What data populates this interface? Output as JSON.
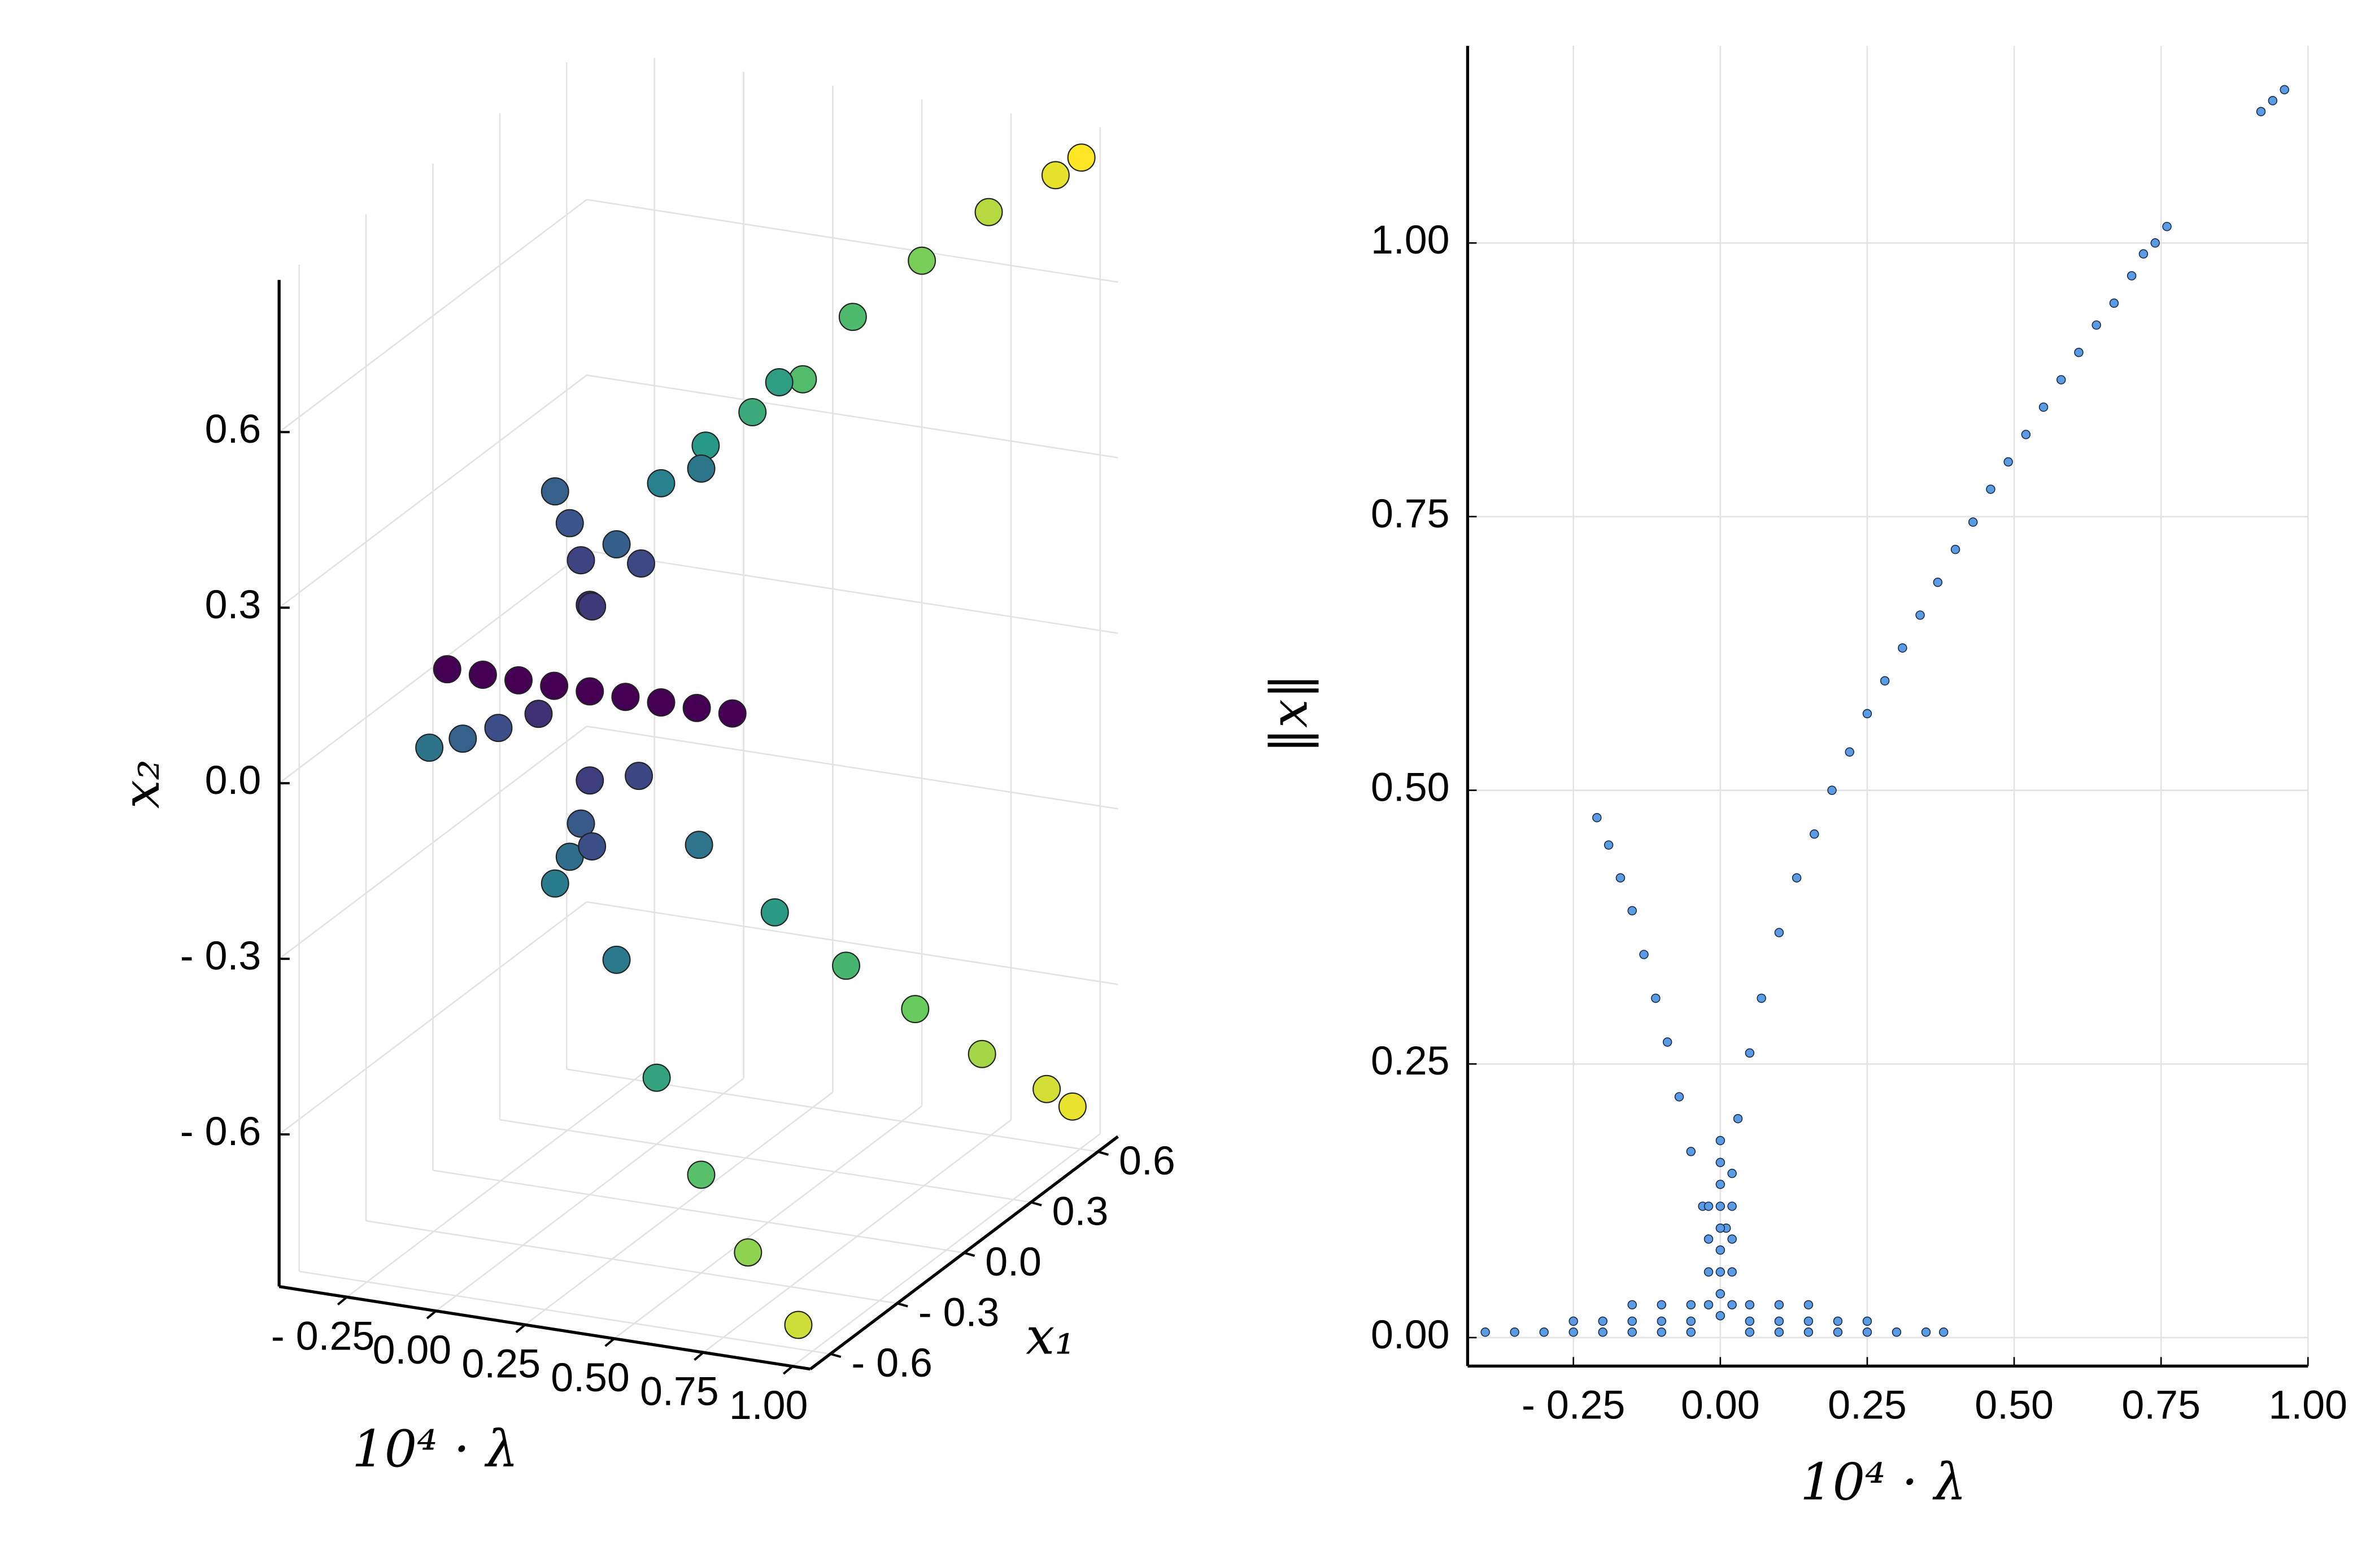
{
  "chart_data": [
    {
      "type": "scatter3d",
      "xlabel": "10⁴ · λ",
      "ylabel": "x₁",
      "zlabel": "x₂",
      "xlim": [
        -0.44,
        1.05
      ],
      "ylim": [
        -0.69,
        0.69
      ],
      "zlim": [
        -0.86,
        0.86
      ],
      "xticks": [
        {
          "value": -0.25,
          "label": "- 0.25"
        },
        {
          "value": 0,
          "label": "0.00"
        },
        {
          "value": 0.25,
          "label": "0.25"
        },
        {
          "value": 0.5,
          "label": "0.50"
        },
        {
          "value": 0.75,
          "label": "0.75"
        },
        {
          "value": 1.0,
          "label": "1.00"
        }
      ],
      "yticks": [
        {
          "value": -0.6,
          "label": "- 0.6"
        },
        {
          "value": -0.3,
          "label": "- 0.3"
        },
        {
          "value": 0,
          "label": "0.0"
        },
        {
          "value": 0.3,
          "label": "0.3"
        },
        {
          "value": 0.6,
          "label": "0.6"
        }
      ],
      "zticks": [
        {
          "value": -0.6,
          "label": "- 0.6"
        },
        {
          "value": -0.3,
          "label": "- 0.3"
        },
        {
          "value": 0,
          "label": "0.0"
        },
        {
          "value": 0.3,
          "label": "0.3"
        },
        {
          "value": 0.6,
          "label": "0.6"
        }
      ],
      "grid": true,
      "colormap": [
        "#440154",
        "#3b528b",
        "#21918c",
        "#5ec962",
        "#fde725"
      ],
      "series": [
        {
          "x": [
            -0.4,
            -0.3,
            -0.2,
            -0.1,
            0,
            0.1,
            0.2,
            0.3,
            0.4
          ],
          "y": [
            0,
            0,
            0,
            0,
            0,
            0,
            0,
            0,
            0
          ],
          "z": [
            0,
            0,
            0,
            0,
            0,
            0,
            0,
            0,
            0
          ]
        },
        {
          "x": [
            -0.05,
            -0.1,
            -0.15,
            -0.2
          ],
          "y": [
            -0.15,
            -0.25,
            -0.33,
            -0.4
          ],
          "z": [
            0,
            0,
            0,
            0
          ]
        },
        {
          "x": [
            -0.05,
            -0.1,
            -0.15,
            -0.21
          ],
          "y": [
            0.08,
            0.12,
            0.15,
            0.18
          ],
          "z": [
            0.12,
            0.18,
            0.23,
            0.27
          ]
        },
        {
          "x": [
            -0.05,
            -0.1,
            -0.15,
            -0.21
          ],
          "y": [
            0.08,
            0.12,
            0.15,
            0.18
          ],
          "z": [
            -0.18,
            -0.27,
            -0.34,
            -0.4
          ]
        },
        {
          "x": [
            0.05,
            0.15,
            0.3,
            0.45,
            0.6,
            0.76
          ],
          "y": [
            -0.07,
            -0.12,
            -0.16,
            -0.2,
            -0.23,
            -0.26
          ],
          "z": [
            0.17,
            0.3,
            0.43,
            0.52,
            0.6,
            0.68
          ]
        },
        {
          "x": [
            0.05,
            0.15,
            0.3,
            0.45,
            0.6,
            0.76
          ],
          "y": [
            -0.07,
            -0.12,
            -0.18,
            -0.22,
            -0.25,
            -0.28
          ],
          "z": [
            -0.24,
            -0.41,
            -0.58,
            -0.72,
            -0.83,
            -0.93
          ]
        },
        {
          "x": [
            0.05,
            0.15,
            0.3,
            0.45,
            0.6,
            0.75,
            0.9,
            0.96
          ],
          "y": [
            0.14,
            0.25,
            0.35,
            0.43,
            0.5,
            0.56,
            0.61,
            0.63
          ],
          "z": [
            -0.18,
            -0.32,
            -0.45,
            -0.55,
            -0.63,
            -0.71,
            -0.77,
            -0.8
          ]
        },
        {
          "x": [
            0.05,
            0.15,
            0.3,
            0.45,
            0.6,
            0.75,
            0.9,
            0.96
          ],
          "y": [
            0.15,
            0.26,
            0.37,
            0.46,
            0.53,
            0.59,
            0.65,
            0.67
          ],
          "z": [
            0.18,
            0.32,
            0.45,
            0.55,
            0.64,
            0.72,
            0.78,
            0.81
          ]
        }
      ]
    },
    {
      "type": "scatter",
      "xlabel": "10⁴ · λ",
      "ylabel": "‖x‖",
      "xlim": [
        -0.43,
        1.0
      ],
      "ylim": [
        -0.026,
        1.18
      ],
      "xticks": [
        {
          "value": -0.25,
          "label": "- 0.25"
        },
        {
          "value": 0,
          "label": "0.00"
        },
        {
          "value": 0.25,
          "label": "0.25"
        },
        {
          "value": 0.5,
          "label": "0.50"
        },
        {
          "value": 0.75,
          "label": "0.75"
        },
        {
          "value": 1.0,
          "label": "1.00"
        }
      ],
      "yticks": [
        {
          "value": 0,
          "label": "0.00"
        },
        {
          "value": 0.25,
          "label": "0.25"
        },
        {
          "value": 0.5,
          "label": "0.50"
        },
        {
          "value": 0.75,
          "label": "0.75"
        },
        {
          "value": 1.0,
          "label": "1.00"
        }
      ],
      "grid": true,
      "color": "#5a9be6",
      "x": [
        0.01,
        0.02,
        0.03,
        0.05,
        0.07,
        0.1,
        0.13,
        0.16,
        0.19,
        0.22,
        0.25,
        0.28,
        0.31,
        0.34,
        0.37,
        0.4,
        0.43,
        0.46,
        0.49,
        0.52,
        0.55,
        0.58,
        0.61,
        0.64,
        0.67,
        0.7,
        0.72,
        0.74,
        0.76,
        0.92,
        0.94,
        0.96,
        -0.03,
        -0.05,
        -0.07,
        -0.09,
        -0.11,
        -0.13,
        -0.15,
        -0.17,
        -0.19,
        -0.21,
        0,
        0,
        0,
        0,
        0,
        0,
        0,
        0,
        0,
        0.02,
        0.02,
        0.02,
        0.02,
        -0.02,
        -0.02,
        -0.02,
        -0.02,
        -0.4,
        -0.35,
        -0.3,
        -0.25,
        -0.2,
        -0.15,
        -0.1,
        -0.05,
        0.05,
        0.1,
        0.15,
        0.2,
        0.25,
        0.3,
        0.35,
        0.38,
        -0.25,
        -0.2,
        -0.15,
        -0.1,
        -0.05,
        0.05,
        0.1,
        0.15,
        0.2,
        0.25,
        -0.15,
        -0.1,
        -0.05,
        0.05,
        0.1,
        0.15
      ],
      "y": [
        0.1,
        0.15,
        0.2,
        0.26,
        0.31,
        0.37,
        0.42,
        0.46,
        0.5,
        0.535,
        0.57,
        0.6,
        0.63,
        0.66,
        0.69,
        0.72,
        0.745,
        0.775,
        0.8,
        0.825,
        0.85,
        0.875,
        0.9,
        0.925,
        0.945,
        0.97,
        0.99,
        1.0,
        1.015,
        1.12,
        1.13,
        1.14,
        0.12,
        0.17,
        0.22,
        0.27,
        0.31,
        0.35,
        0.39,
        0.42,
        0.45,
        0.475,
        0.02,
        0.04,
        0.06,
        0.08,
        0.1,
        0.12,
        0.14,
        0.16,
        0.18,
        0.03,
        0.06,
        0.09,
        0.12,
        0.03,
        0.06,
        0.09,
        0.12,
        0.005,
        0.005,
        0.005,
        0.005,
        0.005,
        0.005,
        0.005,
        0.005,
        0.005,
        0.005,
        0.005,
        0.005,
        0.005,
        0.005,
        0.005,
        0.005,
        0.015,
        0.015,
        0.015,
        0.015,
        0.015,
        0.015,
        0.015,
        0.015,
        0.015,
        0.015,
        0.03,
        0.03,
        0.03,
        0.03,
        0.03,
        0.03
      ]
    }
  ]
}
